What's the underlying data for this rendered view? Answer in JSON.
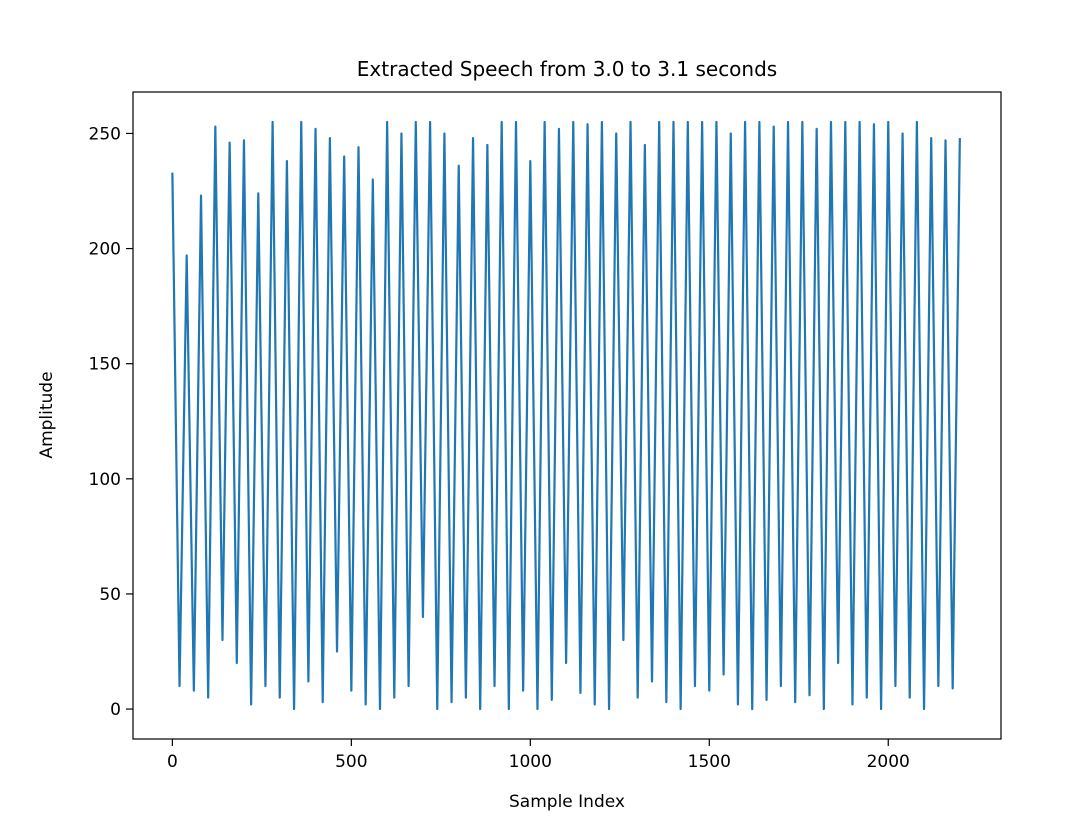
{
  "chart_data": {
    "type": "line",
    "title": "Extracted Speech from 3.0 to 3.1 seconds",
    "x_label": "Sample Index",
    "y_label": "Amplitude",
    "x": [
      0,
      20,
      40,
      60,
      80,
      100,
      120,
      140,
      160,
      180,
      200,
      220,
      240,
      260,
      280,
      300,
      320,
      340,
      360,
      380,
      400,
      420,
      440,
      460,
      480,
      500,
      520,
      540,
      560,
      580,
      600,
      620,
      640,
      660,
      680,
      700,
      720,
      740,
      760,
      780,
      800,
      820,
      840,
      860,
      880,
      900,
      920,
      940,
      960,
      980,
      1000,
      1020,
      1040,
      1060,
      1080,
      1100,
      1120,
      1140,
      1160,
      1180,
      1200,
      1220,
      1240,
      1260,
      1280,
      1300,
      1320,
      1340,
      1360,
      1380,
      1400,
      1420,
      1440,
      1460,
      1480,
      1500,
      1520,
      1540,
      1560,
      1580,
      1600,
      1620,
      1640,
      1660,
      1680,
      1700,
      1720,
      1740,
      1760,
      1780,
      1800,
      1820,
      1840,
      1860,
      1880,
      1900,
      1920,
      1940,
      1960,
      1980,
      2000,
      2020,
      2040,
      2060,
      2080,
      2100,
      2120,
      2140,
      2160,
      2180,
      2200
    ],
    "series": [
      {
        "name": "Amplitude",
        "color": "#1f77b4",
        "values": [
          233,
          10,
          197,
          8,
          223,
          5,
          253,
          30,
          246,
          20,
          247,
          2,
          224,
          10,
          255,
          5,
          238,
          0,
          255,
          12,
          252,
          3,
          248,
          25,
          240,
          8,
          244,
          2,
          230,
          0,
          255,
          5,
          250,
          10,
          255,
          40,
          255,
          0,
          250,
          3,
          236,
          5,
          248,
          0,
          245,
          10,
          255,
          0,
          255,
          8,
          238,
          0,
          255,
          4,
          252,
          20,
          255,
          7,
          254,
          2,
          255,
          0,
          250,
          30,
          255,
          5,
          245,
          12,
          255,
          3,
          255,
          0,
          255,
          10,
          255,
          8,
          255,
          15,
          250,
          2,
          255,
          0,
          255,
          4,
          253,
          10,
          255,
          3,
          255,
          6,
          252,
          0,
          255,
          20,
          255,
          2,
          255,
          5,
          254,
          0,
          255,
          10,
          250,
          5,
          255,
          0,
          248,
          10,
          247,
          9,
          248
        ]
      }
    ],
    "xlim": [
      -110,
      2315
    ],
    "ylim": [
      -13,
      268
    ],
    "xticks": [
      0,
      500,
      1000,
      1500,
      2000
    ],
    "yticks": [
      0,
      50,
      100,
      150,
      200,
      250
    ]
  }
}
